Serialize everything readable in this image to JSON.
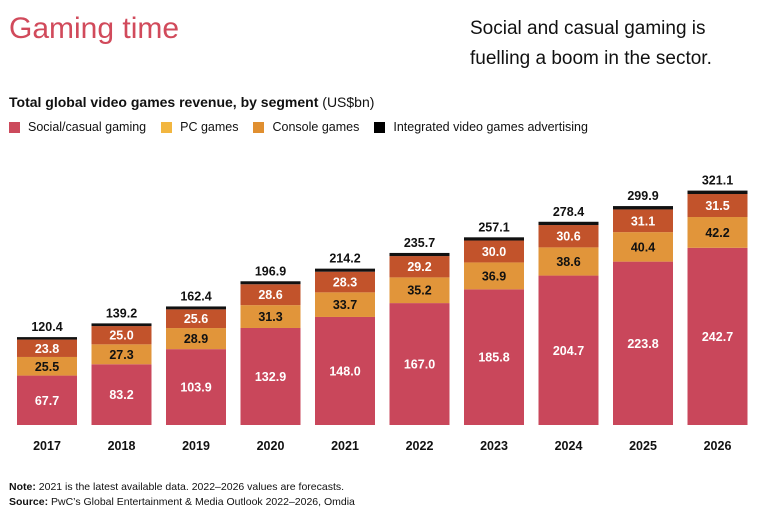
{
  "title": "Gaming time",
  "headline": "Social and casual gaming is fuelling a boom in the sector.",
  "chart_data": {
    "type": "bar",
    "stacked": true,
    "title": "Total global video games revenue, by segment",
    "unit": "(US$bn)",
    "categories": [
      "2017",
      "2018",
      "2019",
      "2020",
      "2021",
      "2022",
      "2023",
      "2024",
      "2025",
      "2026"
    ],
    "series": [
      {
        "name": "Social/casual gaming",
        "color": "#c9475b",
        "legend_color": "#cc4a5c",
        "label_color": "#ffffff",
        "values": [
          67.7,
          83.2,
          103.9,
          132.9,
          148.0,
          167.0,
          185.8,
          204.7,
          223.8,
          242.7
        ]
      },
      {
        "name": "PC games",
        "color": "#e1953a",
        "legend_color": "#f2b640",
        "label_color": "#111111",
        "values": [
          25.5,
          27.3,
          28.9,
          31.3,
          33.7,
          35.2,
          36.9,
          38.6,
          40.4,
          42.2
        ]
      },
      {
        "name": "Console games",
        "color": "#c2532b",
        "legend_color": "#e08f30",
        "label_color": "#ffffff",
        "values": [
          23.8,
          25.0,
          25.6,
          28.6,
          28.3,
          29.2,
          30.0,
          30.6,
          31.1,
          31.5
        ]
      },
      {
        "name": "Integrated video games advertising",
        "color": "#111111",
        "legend_color": "#000000",
        "label_color": "#111111",
        "values": [
          3.4,
          3.7,
          4.0,
          4.1,
          4.2,
          4.3,
          4.4,
          4.5,
          4.6,
          4.7
        ]
      }
    ],
    "totals": [
      "120.4",
      "139.2",
      "162.4",
      "196.9",
      "214.2",
      "235.7",
      "257.1",
      "278.4",
      "299.9",
      "321.1"
    ],
    "value_labels": [
      [
        "67.7",
        "83.2",
        "103.9",
        "132.9",
        "148.0",
        "167.0",
        "185.8",
        "204.7",
        "223.8",
        "242.7"
      ],
      [
        "25.5",
        "27.3",
        "28.9",
        "31.3",
        "33.7",
        "35.2",
        "36.9",
        "38.6",
        "40.4",
        "42.2"
      ],
      [
        "23.8",
        "25.0",
        "25.6",
        "28.6",
        "28.3",
        "29.2",
        "30.0",
        "30.6",
        "31.1",
        "31.5"
      ]
    ],
    "grid": false,
    "legend_position": "top-left"
  },
  "notes": {
    "note_label": "Note:",
    "note_text": " 2021 is the latest available data. 2022–2026 values are forecasts.",
    "source_label": "Source:",
    "source_text": " PwC’s Global Entertainment & Media Outlook 2022–2026, Omdia"
  }
}
